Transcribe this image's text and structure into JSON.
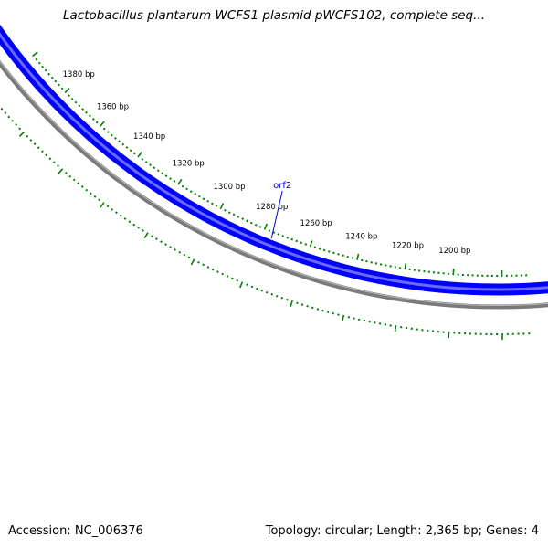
{
  "title": "Lactobacillus plantarum WCFS1 plasmid pWCFS102, complete seq...",
  "footer": {
    "accession_label": "Accession:",
    "accession": "NC_006376",
    "topology_label": "Topology:",
    "topology": "circular",
    "length_label": "Length:",
    "length": "2,365 bp",
    "genes_label": "Genes:",
    "genes": "4"
  },
  "ticks": [
    {
      "pos": 1380,
      "label": "1380 bp"
    },
    {
      "pos": 1360,
      "label": "1360 bp"
    },
    {
      "pos": 1340,
      "label": "1340 bp"
    },
    {
      "pos": 1320,
      "label": "1320 bp"
    },
    {
      "pos": 1300,
      "label": "1300 bp"
    },
    {
      "pos": 1280,
      "label": "1280 bp"
    },
    {
      "pos": 1260,
      "label": "1260 bp"
    },
    {
      "pos": 1240,
      "label": "1240 bp"
    },
    {
      "pos": 1220,
      "label": "1220 bp"
    },
    {
      "pos": 1200,
      "label": "1200 bp"
    }
  ],
  "features": [
    {
      "name": "orf2",
      "pos": 1276
    }
  ],
  "colors": {
    "feature": "#0000ff",
    "feature_light": "#6a6aff",
    "backbone": "#7a7a7a",
    "ticks": "#008000",
    "label_line": "#0000cc"
  }
}
